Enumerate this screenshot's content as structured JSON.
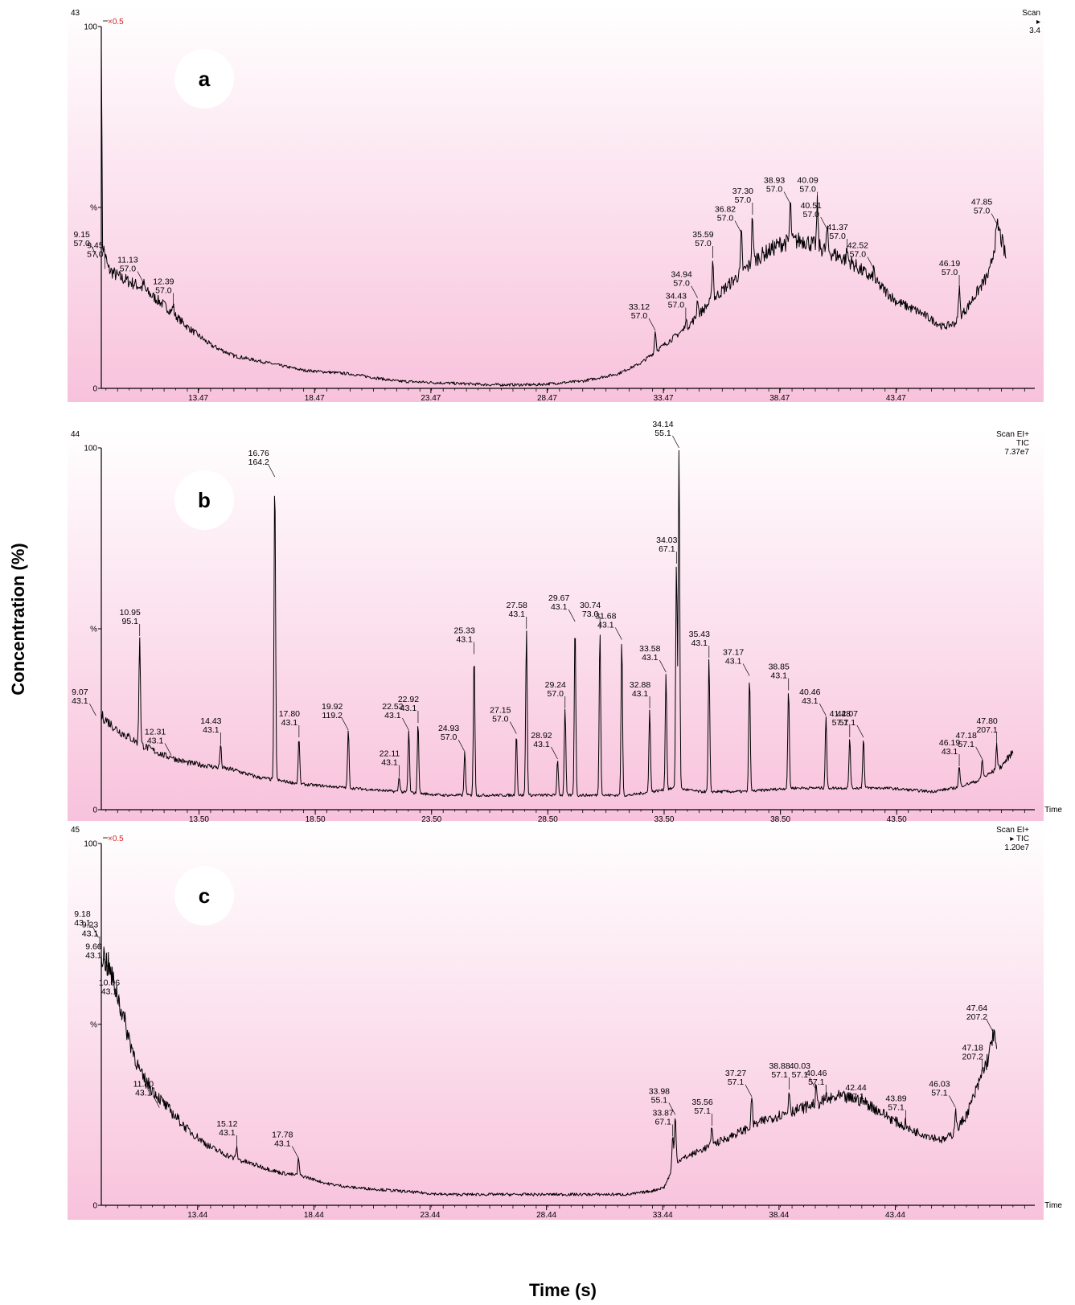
{
  "figure": {
    "ylabel": "Concentration (%)",
    "xlabel": "Time (s)"
  },
  "chart_data": [
    {
      "type": "line",
      "panel_label": "a",
      "corner_number": "43",
      "scale_note": "×0.5",
      "header_right": [
        "Scan",
        "▸",
        "3.4"
      ],
      "y_ticks": [
        "100",
        "%",
        "0"
      ],
      "x_ticks": [
        13.47,
        18.47,
        23.47,
        28.47,
        33.47,
        38.47,
        43.47
      ],
      "xlim": [
        9.3,
        49.3
      ],
      "ylim": [
        0,
        100
      ],
      "series": [
        {
          "x": [
            9.3,
            9.35,
            9.6,
            10.0,
            11.0,
            12.0,
            13.0,
            14.0,
            15.0,
            16.5,
            18.0,
            20.0,
            22.0,
            24.0,
            26.0,
            28.0,
            30.0,
            31.5,
            32.5,
            33.5,
            34.5,
            35.5,
            36.5,
            37.5,
            38.5,
            39.5,
            40.5,
            41.5,
            42.5,
            43.5,
            44.5,
            45.0,
            45.5,
            46.0,
            46.5,
            47.0,
            47.5,
            47.85,
            48.2
          ],
          "y": [
            100,
            40,
            33,
            31,
            28,
            23,
            17,
            12,
            9,
            7,
            5,
            4,
            2,
            1.5,
            1,
            1,
            2,
            4,
            7,
            12,
            17,
            24,
            30,
            36,
            40,
            41,
            38,
            35,
            30,
            24,
            21,
            19,
            17,
            18,
            22,
            27,
            32,
            45,
            36
          ]
        }
      ],
      "peaks": [
        {
          "t": 9.15,
          "label": [
            "9.15",
            "57.0"
          ],
          "h": 36
        },
        {
          "t": 9.45,
          "label": [
            "9.45",
            "57.0"
          ],
          "h": 33
        },
        {
          "t": 11.13,
          "label": [
            "11.13",
            "57.0"
          ],
          "h": 29
        },
        {
          "t": 12.39,
          "label": [
            "12.39",
            "57.0"
          ],
          "h": 23
        },
        {
          "t": 33.12,
          "label": [
            "33.12",
            "57.0"
          ],
          "h": 16
        },
        {
          "t": 34.43,
          "label": [
            "34.43",
            "57.0"
          ],
          "h": 19
        },
        {
          "t": 34.94,
          "label": [
            "34.94",
            "57.0"
          ],
          "h": 25
        },
        {
          "t": 35.59,
          "label": [
            "35.59",
            "57.0"
          ],
          "h": 36
        },
        {
          "t": 36.82,
          "label": [
            "36.82",
            "57.0"
          ],
          "h": 43
        },
        {
          "t": 37.3,
          "label": [
            "37.30",
            "57.0"
          ],
          "h": 48
        },
        {
          "t": 38.93,
          "label": [
            "38.93",
            "57.0"
          ],
          "h": 51
        },
        {
          "t": 40.09,
          "label": [
            "40.09",
            "57.0"
          ],
          "h": 51
        },
        {
          "t": 40.51,
          "label": [
            "40.51",
            "57.0"
          ],
          "h": 44
        },
        {
          "t": 41.37,
          "label": [
            "41.37",
            "57.0"
          ],
          "h": 38
        },
        {
          "t": 42.52,
          "label": [
            "42.52",
            "57.0"
          ],
          "h": 33
        },
        {
          "t": 46.19,
          "label": [
            "46.19",
            "57.0"
          ],
          "h": 28
        },
        {
          "t": 47.85,
          "label": [
            "47.85",
            "57.0"
          ],
          "h": 45
        }
      ]
    },
    {
      "type": "line",
      "panel_label": "b",
      "corner_number": "44",
      "header_right": [
        "Scan EI+",
        "TIC",
        "7.37e7"
      ],
      "axis_end_label": "Time",
      "y_ticks": [
        "100",
        "%",
        "0"
      ],
      "x_ticks": [
        13.5,
        18.5,
        23.5,
        28.5,
        33.5,
        38.5,
        43.5
      ],
      "xlim": [
        9.3,
        49.3
      ],
      "ylim": [
        0,
        100
      ],
      "series": [
        {
          "x": [
            9.3,
            10.0,
            11.0,
            12.0,
            13.0,
            14.0,
            15.0,
            16.0,
            17.0,
            18.0,
            20.0,
            22.0,
            24.0,
            26.0,
            28.0,
            30.0,
            32.0,
            33.0,
            34.0,
            35.0,
            37.0,
            39.0,
            41.0,
            43.0,
            45.0,
            46.0,
            47.0,
            48.0,
            48.5
          ],
          "y": [
            26,
            22,
            18,
            15,
            13,
            12,
            11,
            9,
            8,
            7,
            6,
            5,
            4,
            4,
            4,
            4,
            4,
            5,
            6,
            5,
            5,
            6,
            6,
            6,
            5,
            6,
            8,
            12,
            16
          ]
        }
      ],
      "peaks": [
        {
          "t": 9.07,
          "label": [
            "9.07",
            "43.1"
          ],
          "h": 26
        },
        {
          "t": 10.95,
          "label": [
            "10.95",
            "95.1"
          ],
          "h": 48
        },
        {
          "t": 12.31,
          "label": [
            "12.31",
            "43.1"
          ],
          "h": 15
        },
        {
          "t": 14.43,
          "label": [
            "14.43",
            "43.1"
          ],
          "h": 18
        },
        {
          "t": 16.76,
          "label": [
            "16.76",
            "164.2"
          ],
          "h": 92
        },
        {
          "t": 17.8,
          "label": [
            "17.80",
            "43.1"
          ],
          "h": 20
        },
        {
          "t": 19.92,
          "label": [
            "19.92",
            "119.2"
          ],
          "h": 22
        },
        {
          "t": 22.11,
          "label": [
            "22.11",
            "43.1"
          ],
          "h": 9
        },
        {
          "t": 22.52,
          "label": [
            "22.52",
            "43.1"
          ],
          "h": 22
        },
        {
          "t": 22.92,
          "label": [
            "22.92",
            "43.1"
          ],
          "h": 24
        },
        {
          "t": 24.93,
          "label": [
            "24.93",
            "57.0"
          ],
          "h": 16
        },
        {
          "t": 25.33,
          "label": [
            "25.33",
            "43.1"
          ],
          "h": 43
        },
        {
          "t": 27.15,
          "label": [
            "27.15",
            "57.0"
          ],
          "h": 21
        },
        {
          "t": 27.58,
          "label": [
            "27.58",
            "43.1"
          ],
          "h": 50
        },
        {
          "t": 28.92,
          "label": [
            "28.92",
            "43.1"
          ],
          "h": 14
        },
        {
          "t": 29.24,
          "label": [
            "29.24",
            "57.0"
          ],
          "h": 28
        },
        {
          "t": 29.67,
          "label": [
            "29.67",
            "43.1"
          ],
          "h": 52
        },
        {
          "t": 30.74,
          "label": [
            "30.74",
            "73.0"
          ],
          "h": 50
        },
        {
          "t": 31.68,
          "label": [
            "31.68",
            "43.1"
          ],
          "h": 47
        },
        {
          "t": 32.88,
          "label": [
            "32.88",
            "43.1"
          ],
          "h": 28
        },
        {
          "t": 33.58,
          "label": [
            "33.58",
            "43.1"
          ],
          "h": 38
        },
        {
          "t": 34.03,
          "label": [
            "34.03",
            "67.1"
          ],
          "h": 68
        },
        {
          "t": 34.14,
          "label": [
            "34.14",
            "55.1"
          ],
          "h": 100
        },
        {
          "t": 35.43,
          "label": [
            "35.43",
            "43.1"
          ],
          "h": 42
        },
        {
          "t": 37.17,
          "label": [
            "37.17",
            "43.1"
          ],
          "h": 37
        },
        {
          "t": 38.85,
          "label": [
            "38.85",
            "43.1"
          ],
          "h": 33
        },
        {
          "t": 40.46,
          "label": [
            "40.46",
            "43.1"
          ],
          "h": 26
        },
        {
          "t": 41.48,
          "label": [
            "41.48",
            "57.1"
          ],
          "h": 20
        },
        {
          "t": 42.07,
          "label": [
            "42.07",
            "57.1"
          ],
          "h": 20
        },
        {
          "t": 46.19,
          "label": [
            "46.19",
            "43.1"
          ],
          "h": 12
        },
        {
          "t": 47.18,
          "label": [
            "47.18",
            "57.1"
          ],
          "h": 14
        },
        {
          "t": 47.8,
          "label": [
            "47.80",
            "207.1"
          ],
          "h": 18
        }
      ]
    },
    {
      "type": "line",
      "panel_label": "c",
      "corner_number": "45",
      "scale_note": "×0.5",
      "header_right": [
        "Scan EI+",
        "▸ TIC",
        "1.20e7"
      ],
      "axis_end_label": "Time",
      "y_ticks": [
        "100",
        "%",
        "0"
      ],
      "x_ticks": [
        13.44,
        18.44,
        23.44,
        28.44,
        33.44,
        38.44,
        43.44
      ],
      "xlim": [
        9.3,
        49.3
      ],
      "ylim": [
        0,
        100
      ],
      "series": [
        {
          "x": [
            9.3,
            9.6,
            10.0,
            10.5,
            11.0,
            12.0,
            13.0,
            14.0,
            15.0,
            16.0,
            17.0,
            18.0,
            19.0,
            20.0,
            22.0,
            24.0,
            26.0,
            28.0,
            30.0,
            32.0,
            33.0,
            33.5,
            34.0,
            35.0,
            36.0,
            37.0,
            38.0,
            39.0,
            40.0,
            41.0,
            42.0,
            43.0,
            44.0,
            45.0,
            45.5,
            46.0,
            46.5,
            47.0,
            47.5,
            47.64,
            47.8
          ],
          "y": [
            70,
            66,
            58,
            46,
            36,
            28,
            21,
            16,
            13,
            11,
            9,
            8,
            6,
            5,
            4,
            3,
            3,
            3,
            3,
            3,
            4,
            5,
            12,
            15,
            18,
            21,
            24,
            26,
            28,
            30,
            29,
            25,
            21,
            19,
            18,
            20,
            25,
            33,
            42,
            48,
            43
          ]
        }
      ],
      "peaks": [
        {
          "t": 9.18,
          "label": [
            "9.18",
            "43.1"
          ],
          "h": 74
        },
        {
          "t": 9.23,
          "label": [
            "9.23",
            "43.1"
          ],
          "h": 71
        },
        {
          "t": 9.66,
          "label": [
            "9.66",
            "43.1"
          ],
          "h": 65
        },
        {
          "t": 10.06,
          "label": [
            "10.06",
            "43.1"
          ],
          "h": 55
        },
        {
          "t": 11.8,
          "label": [
            "11.80",
            "43.1"
          ],
          "h": 27
        },
        {
          "t": 15.12,
          "label": [
            "15.12",
            "43.1"
          ],
          "h": 16
        },
        {
          "t": 17.78,
          "label": [
            "17.78",
            "43.1"
          ],
          "h": 13
        },
        {
          "t": 33.87,
          "label": [
            "33.87",
            "67.1"
          ],
          "h": 19
        },
        {
          "t": 33.98,
          "label": [
            "33.98",
            "55.1"
          ],
          "h": 25
        },
        {
          "t": 35.56,
          "label": [
            "35.56",
            "57.1"
          ],
          "h": 22
        },
        {
          "t": 37.27,
          "label": [
            "37.27",
            "57.1"
          ],
          "h": 30
        },
        {
          "t": 38.88,
          "label": [
            "38.88",
            "57.1"
          ],
          "h": 32
        },
        {
          "t": 40.03,
          "label": [
            "40.03",
            "57.1"
          ],
          "h": 32
        },
        {
          "t": 40.46,
          "label": [
            "40.46",
            "57.1"
          ],
          "h": 30
        },
        {
          "t": 42.44,
          "label": [
            "42.44",
            "57.1"
          ],
          "h": 26
        },
        {
          "t": 43.89,
          "label": [
            "43.89",
            "57.1"
          ],
          "h": 23
        },
        {
          "t": 46.03,
          "label": [
            "46.03",
            "57.1"
          ],
          "h": 27
        },
        {
          "t": 47.18,
          "label": [
            "47.18",
            "207.2"
          ],
          "h": 37
        },
        {
          "t": 47.64,
          "label": [
            "47.64",
            "207.2"
          ],
          "h": 48
        }
      ]
    }
  ]
}
